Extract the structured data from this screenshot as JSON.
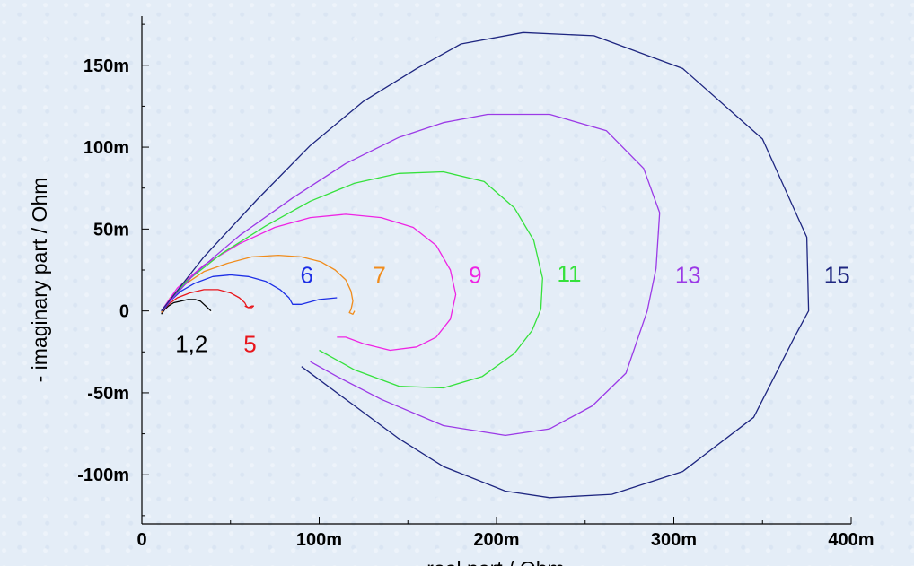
{
  "chart_data": {
    "type": "line",
    "xlabel": "real part / Ohm",
    "ylabel": "- imaginary part / Ohm",
    "xlim": [
      0,
      0.4
    ],
    "ylim": [
      -0.13,
      0.18
    ],
    "x_ticks": [
      {
        "value": 0,
        "label": "0"
      },
      {
        "value": 0.1,
        "label": "100m"
      },
      {
        "value": 0.2,
        "label": "200m"
      },
      {
        "value": 0.3,
        "label": "300m"
      },
      {
        "value": 0.4,
        "label": "400m"
      }
    ],
    "y_ticks": [
      {
        "value": -0.1,
        "label": "-100m"
      },
      {
        "value": -0.05,
        "label": "-50m"
      },
      {
        "value": 0,
        "label": "0"
      },
      {
        "value": 0.05,
        "label": "50m"
      },
      {
        "value": 0.1,
        "label": "100m"
      },
      {
        "value": 0.15,
        "label": "150m"
      }
    ],
    "grid": false,
    "series": [
      {
        "label": "1,2",
        "color": "#000000",
        "label_x": 0.028,
        "label_y": -0.025,
        "x": [
          0.011,
          0.013,
          0.015,
          0.018,
          0.022,
          0.026,
          0.03,
          0.033,
          0.035,
          0.037,
          0.038,
          0.039
        ],
        "y": [
          -0.002,
          0.001,
          0.003,
          0.005,
          0.006,
          0.007,
          0.007,
          0.006,
          0.004,
          0.002,
          0.001,
          0.0
        ]
      },
      {
        "label": "5",
        "color": "#e8151b",
        "label_x": 0.061,
        "label_y": -0.025,
        "x": [
          0.011,
          0.015,
          0.02,
          0.027,
          0.035,
          0.043,
          0.05,
          0.055,
          0.058,
          0.059,
          0.06,
          0.062,
          0.063,
          0.062,
          0.06,
          0.058
        ],
        "y": [
          -0.001,
          0.004,
          0.008,
          0.011,
          0.013,
          0.013,
          0.011,
          0.008,
          0.005,
          0.003,
          0.002,
          0.003,
          0.003,
          0.002,
          0.002,
          0.003
        ]
      },
      {
        "label": "6",
        "color": "#1d2fe6",
        "label_x": 0.093,
        "label_y": 0.017,
        "x": [
          0.011,
          0.016,
          0.022,
          0.03,
          0.04,
          0.05,
          0.06,
          0.07,
          0.078,
          0.083,
          0.085,
          0.09,
          0.1,
          0.11
        ],
        "y": [
          -0.001,
          0.006,
          0.012,
          0.017,
          0.021,
          0.022,
          0.021,
          0.018,
          0.013,
          0.008,
          0.004,
          0.004,
          0.007,
          0.008
        ]
      },
      {
        "label": "7",
        "color": "#f08c1c",
        "label_x": 0.134,
        "label_y": 0.017,
        "x": [
          0.011,
          0.016,
          0.024,
          0.035,
          0.048,
          0.062,
          0.077,
          0.09,
          0.101,
          0.109,
          0.115,
          0.118,
          0.119,
          0.118,
          0.117,
          0.119,
          0.12
        ],
        "y": [
          -0.001,
          0.008,
          0.016,
          0.024,
          0.029,
          0.033,
          0.034,
          0.033,
          0.03,
          0.025,
          0.019,
          0.012,
          0.006,
          0.001,
          -0.001,
          -0.002,
          0.0
        ]
      },
      {
        "label": "9",
        "color": "#ee24e3",
        "label_x": 0.188,
        "label_y": 0.017,
        "x": [
          0.011,
          0.02,
          0.035,
          0.055,
          0.075,
          0.095,
          0.115,
          0.135,
          0.153,
          0.166,
          0.174,
          0.177,
          0.174,
          0.166,
          0.155,
          0.14,
          0.125,
          0.115,
          0.11
        ],
        "y": [
          0.0,
          0.014,
          0.028,
          0.041,
          0.051,
          0.057,
          0.059,
          0.057,
          0.051,
          0.04,
          0.025,
          0.01,
          -0.005,
          -0.016,
          -0.022,
          -0.024,
          -0.02,
          -0.016,
          -0.016
        ]
      },
      {
        "label": "11",
        "color": "#35e13c",
        "label_x": 0.241,
        "label_y": 0.018,
        "x": [
          0.011,
          0.025,
          0.045,
          0.07,
          0.095,
          0.12,
          0.145,
          0.17,
          0.193,
          0.21,
          0.221,
          0.226,
          0.225,
          0.22,
          0.21,
          0.192,
          0.17,
          0.145,
          0.12,
          0.1
        ],
        "y": [
          0.0,
          0.018,
          0.035,
          0.052,
          0.067,
          0.078,
          0.084,
          0.085,
          0.079,
          0.063,
          0.043,
          0.02,
          0.001,
          -0.012,
          -0.026,
          -0.04,
          -0.047,
          -0.046,
          -0.036,
          -0.024
        ]
      },
      {
        "label": "13",
        "color": "#9b3ae6",
        "label_x": 0.308,
        "label_y": 0.017,
        "x": [
          0.011,
          0.03,
          0.055,
          0.085,
          0.115,
          0.145,
          0.17,
          0.195,
          0.23,
          0.262,
          0.283,
          0.292,
          0.29,
          0.285,
          0.273,
          0.254,
          0.23,
          0.205,
          0.17,
          0.135,
          0.11,
          0.095
        ],
        "y": [
          0.0,
          0.023,
          0.046,
          0.069,
          0.09,
          0.106,
          0.115,
          0.12,
          0.12,
          0.11,
          0.087,
          0.06,
          0.026,
          0.0,
          -0.038,
          -0.058,
          -0.072,
          -0.076,
          -0.07,
          -0.054,
          -0.04,
          -0.031
        ]
      },
      {
        "label": "15",
        "color": "#1e2680",
        "label_x": 0.392,
        "label_y": 0.017,
        "x": [
          0.011,
          0.035,
          0.065,
          0.095,
          0.125,
          0.155,
          0.18,
          0.215,
          0.255,
          0.305,
          0.35,
          0.375,
          0.376,
          0.368,
          0.345,
          0.305,
          0.265,
          0.23,
          0.205,
          0.17,
          0.145,
          0.12,
          0.09
        ],
        "y": [
          0.0,
          0.033,
          0.068,
          0.101,
          0.128,
          0.148,
          0.163,
          0.17,
          0.168,
          0.148,
          0.105,
          0.045,
          0.0,
          -0.016,
          -0.065,
          -0.098,
          -0.112,
          -0.114,
          -0.11,
          -0.095,
          -0.078,
          -0.058,
          -0.034
        ]
      }
    ]
  }
}
